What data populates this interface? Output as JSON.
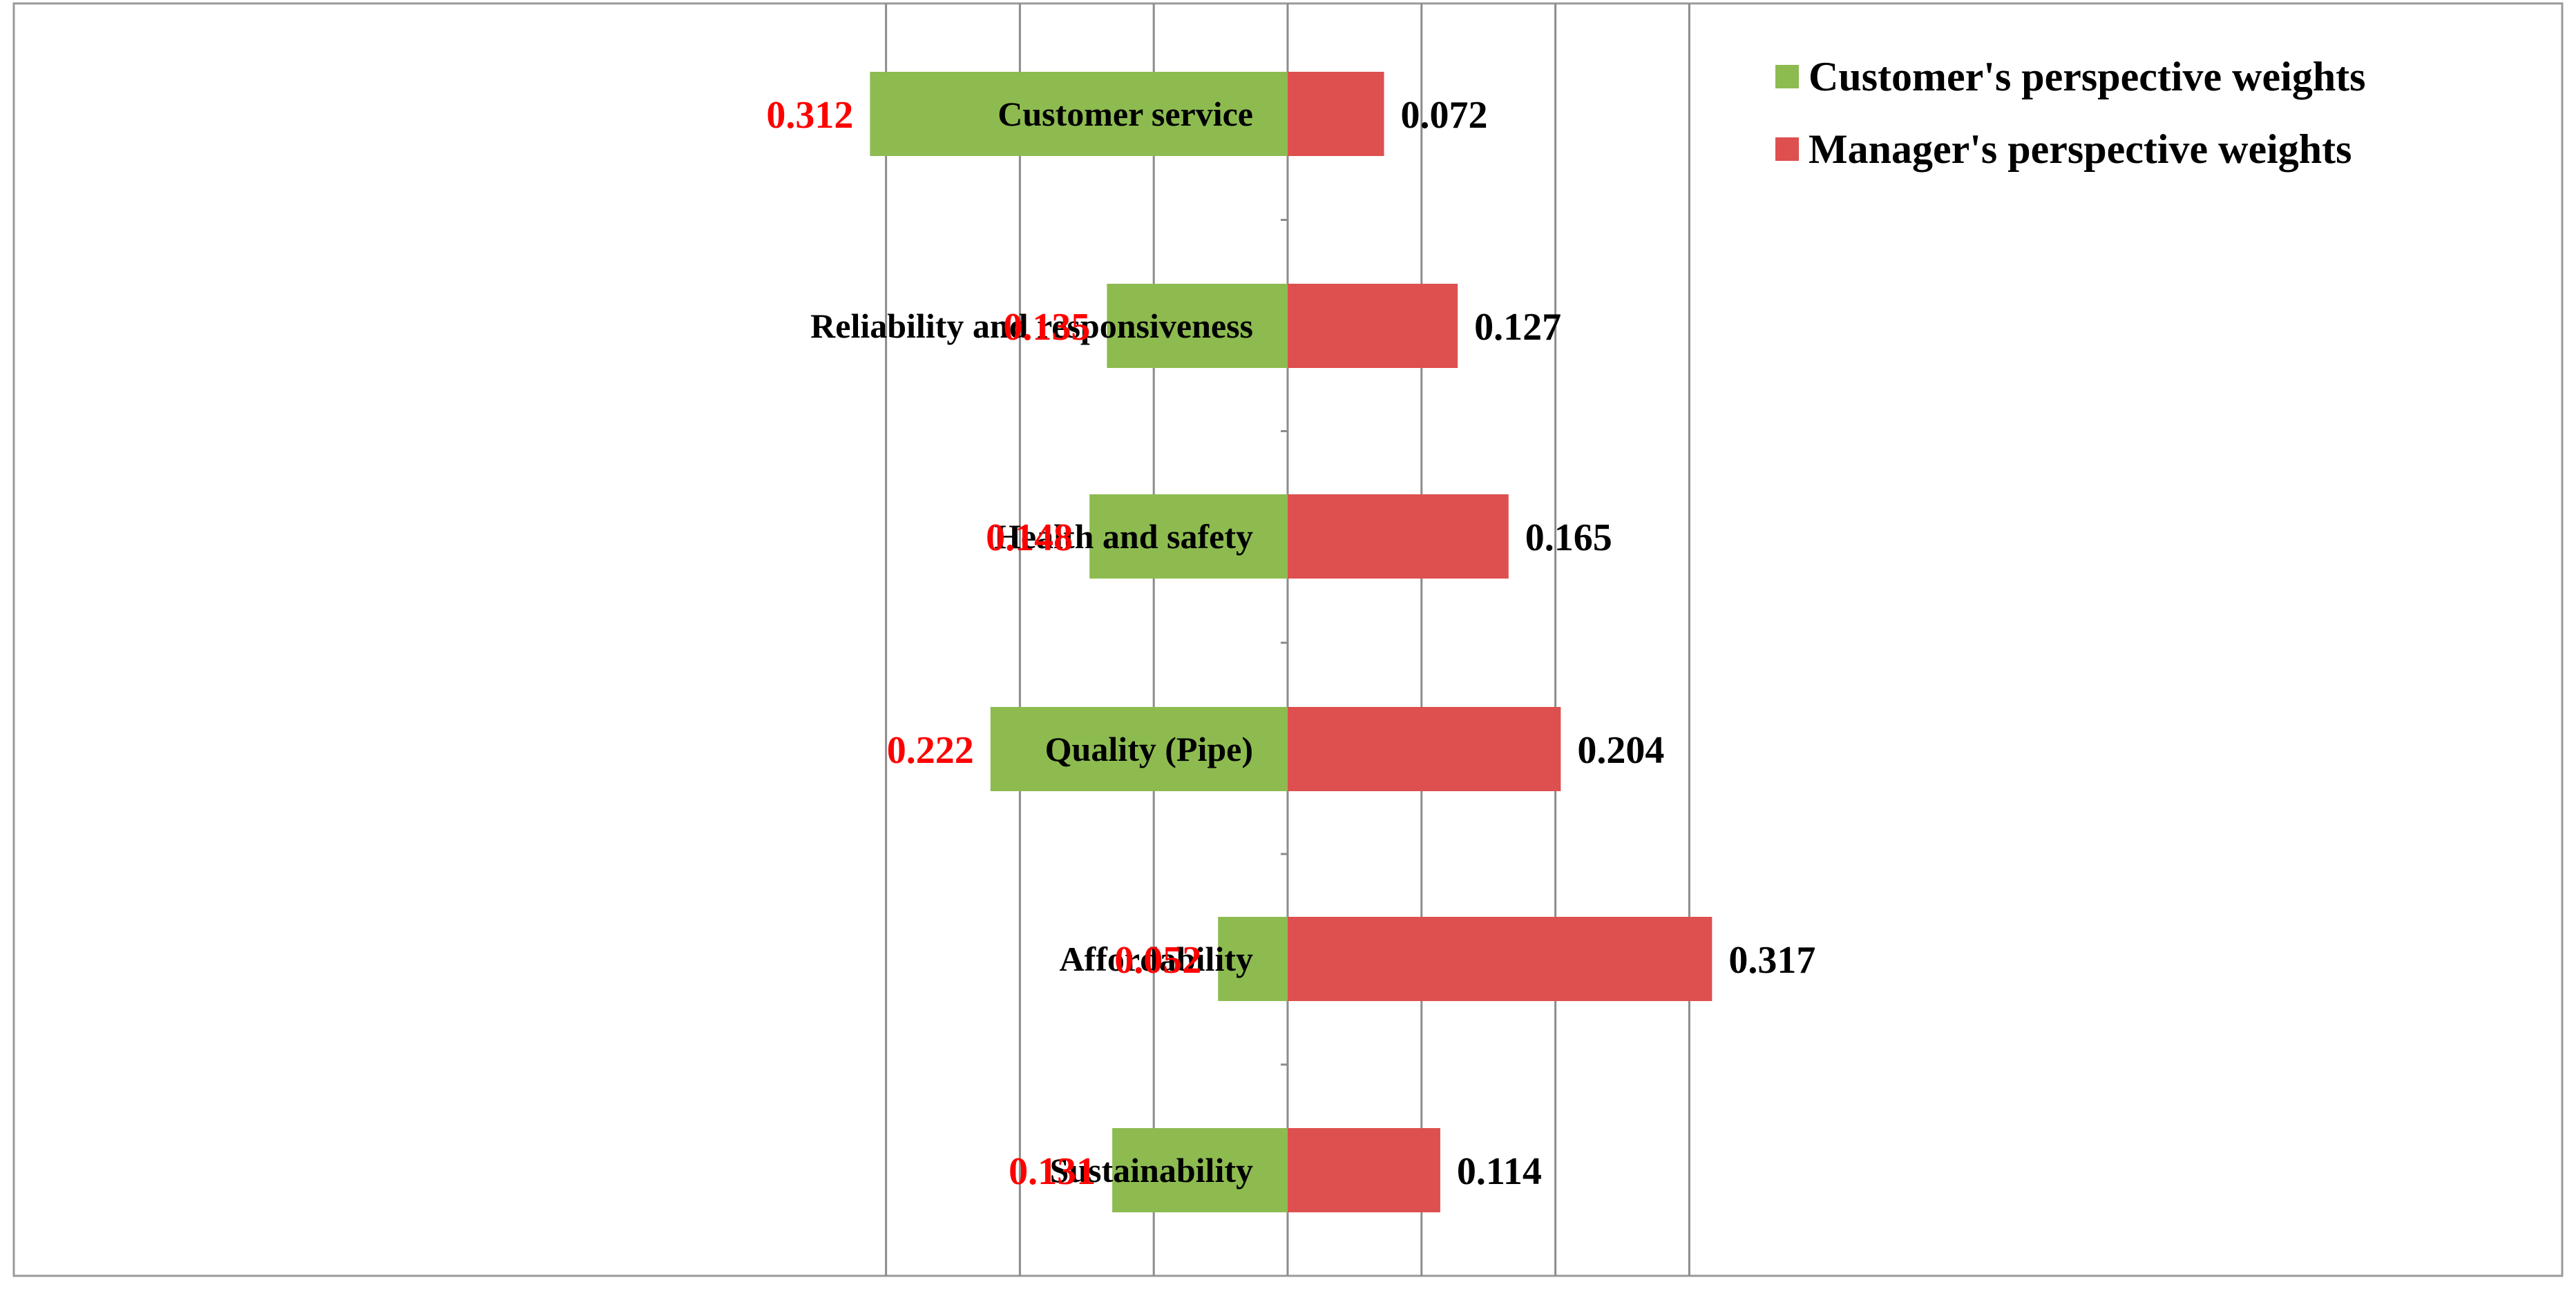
{
  "chart_data": {
    "type": "bar",
    "orientation": "horizontal-diverging",
    "categories": [
      "Customer service",
      "Reliability and responsiveness",
      "Health and safety",
      "Quality (Pipe)",
      "Affordability",
      "Sustainability"
    ],
    "series": [
      {
        "name": "Customer's perspective weights",
        "color": "#8DBB50",
        "values": [
          0.312,
          0.135,
          0.148,
          0.222,
          0.052,
          0.131
        ],
        "side": "left",
        "label_color": "#FF0000"
      },
      {
        "name": "Manager's perspective weights",
        "color": "#DE4F4F",
        "values": [
          0.072,
          0.127,
          0.165,
          0.204,
          0.317,
          0.114
        ],
        "side": "right",
        "label_color": "#000000"
      }
    ],
    "value_labels_left": [
      "0.312",
      "0.135",
      "0.148",
      "0.222",
      "0.052",
      "0.131"
    ],
    "value_labels_right": [
      "0.072",
      "0.127",
      "0.165",
      "0.204",
      "0.317",
      "0.114"
    ],
    "xlim": [
      -0.4,
      0.4
    ],
    "grid": true,
    "gridline_color": "#8C8C8C",
    "legend_position": "top-right"
  }
}
